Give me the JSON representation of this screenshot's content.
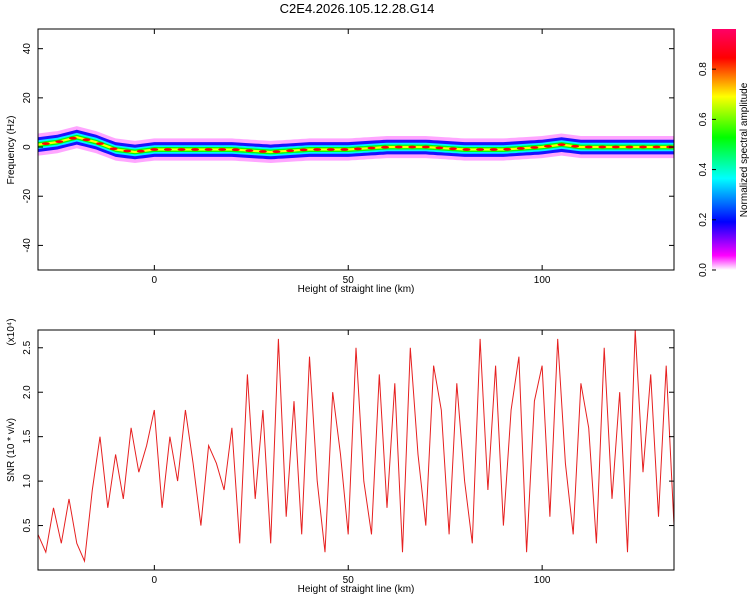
{
  "title": "C2E4.2026.105.12.28.G14",
  "chart_data": [
    {
      "type": "heatmap",
      "xlabel": "Height of straight line (km)",
      "ylabel": "Frequency (Hz)",
      "xlim": [
        -30,
        134
      ],
      "ylim": [
        -50,
        48
      ],
      "xticks": [
        0,
        50,
        100
      ],
      "xtick_labels": [
        "0",
        "50",
        "100"
      ],
      "yticks": [
        -40,
        -20,
        0,
        20,
        40
      ],
      "ytick_labels": [
        "-40",
        "-20",
        "0",
        "20",
        "40"
      ],
      "colorbar": {
        "label": "Normalized spectral amplitude",
        "range": [
          0,
          0.96
        ],
        "ticks": [
          0.0,
          0.2,
          0.4,
          0.6,
          0.8
        ],
        "tick_labels": [
          "0.0",
          "0.2",
          "0.4",
          "0.6",
          "0.8"
        ],
        "colors": [
          "#ffffff",
          "#ff00ff",
          "#0000ff",
          "#00ffff",
          "#00ff00",
          "#ffff00",
          "#ff0000",
          "#ff0066"
        ]
      },
      "ridge_x": [
        -30,
        -25,
        -20,
        -15,
        -10,
        -5,
        0,
        10,
        20,
        30,
        40,
        50,
        60,
        70,
        80,
        90,
        100,
        105,
        110,
        120,
        134
      ],
      "ridge_freq": [
        1,
        2,
        4,
        2,
        -1,
        -2,
        -1,
        -1,
        -1,
        -2,
        -1,
        -1,
        0,
        0,
        -1,
        -1,
        0,
        1,
        0,
        0,
        0
      ]
    },
    {
      "type": "line",
      "xlabel": "Height of straight line (km)",
      "ylabel": "SNR (10 * v/v)",
      "multiplier_label": "(x10⁴)",
      "xlim": [
        -30,
        134
      ],
      "ylim": [
        0,
        2.7
      ],
      "xticks": [
        0,
        50,
        100
      ],
      "xtick_labels": [
        "0",
        "50",
        "100"
      ],
      "yticks": [
        0.5,
        1.0,
        1.5,
        2.0,
        2.5
      ],
      "ytick_labels": [
        "0.5",
        "1.0",
        "1.5",
        "2.0",
        "2.5"
      ],
      "series": [
        {
          "color": "#e62020",
          "x": [
            -30,
            -28,
            -26,
            -24,
            -22,
            -20,
            -18,
            -16,
            -14,
            -12,
            -10,
            -8,
            -6,
            -4,
            -2,
            0,
            2,
            4,
            6,
            8,
            10,
            12,
            14,
            16,
            18,
            20,
            22,
            24,
            26,
            28,
            30,
            32,
            34,
            36,
            38,
            40,
            42,
            44,
            46,
            48,
            50,
            52,
            54,
            56,
            58,
            60,
            62,
            64,
            66,
            68,
            70,
            72,
            74,
            76,
            78,
            80,
            82,
            84,
            86,
            88,
            90,
            92,
            94,
            96,
            98,
            100,
            102,
            104,
            106,
            108,
            110,
            112,
            114,
            116,
            118,
            120,
            122,
            124,
            126,
            128,
            130,
            132,
            134
          ],
          "values": [
            0.4,
            0.2,
            0.7,
            0.3,
            0.8,
            0.3,
            0.1,
            0.9,
            1.5,
            0.7,
            1.3,
            0.8,
            1.6,
            1.1,
            1.4,
            1.8,
            0.7,
            1.5,
            1.0,
            1.8,
            1.2,
            0.5,
            1.4,
            1.2,
            0.9,
            1.6,
            0.3,
            2.2,
            0.8,
            1.8,
            0.3,
            2.6,
            0.6,
            1.9,
            0.4,
            2.4,
            1.0,
            0.2,
            2.0,
            1.3,
            0.4,
            2.5,
            1.0,
            0.4,
            2.2,
            0.7,
            2.1,
            0.2,
            2.5,
            1.3,
            0.5,
            2.3,
            1.8,
            0.4,
            2.1,
            1.0,
            0.3,
            2.6,
            0.9,
            2.3,
            0.5,
            1.8,
            2.4,
            0.2,
            1.9,
            2.3,
            0.6,
            2.6,
            1.2,
            0.4,
            2.1,
            1.6,
            0.3,
            2.5,
            0.8,
            2.0,
            0.2,
            2.7,
            1.1,
            2.2,
            0.6,
            2.3,
            0.5
          ]
        }
      ]
    }
  ]
}
